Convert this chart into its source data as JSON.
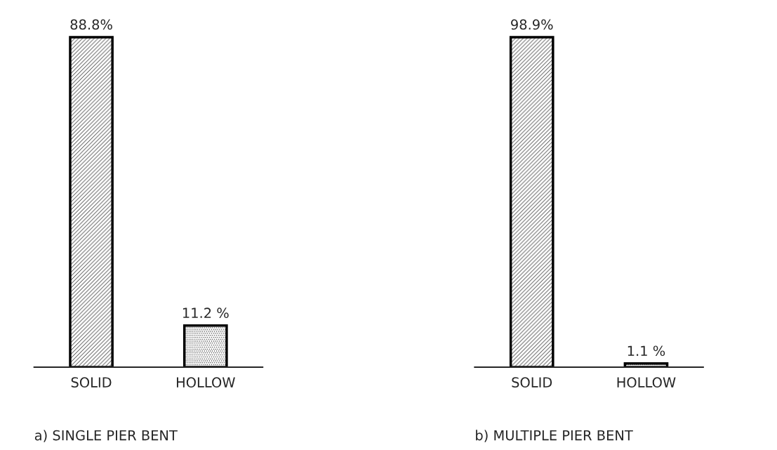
{
  "chart_data": [
    {
      "type": "bar",
      "title": "a) SINGLE PIER BENT",
      "categories": [
        "SOLID",
        "HOLLOW"
      ],
      "values": [
        88.8,
        11.2
      ],
      "colors": [
        "#000000",
        "#000000"
      ],
      "value_labels": [
        "88.8%",
        "11.2 %"
      ]
    },
    {
      "type": "bar",
      "title": "b) MULTIPLE PIER BENT",
      "categories": [
        "SOLID",
        "HOLLOW"
      ],
      "values": [
        98.9,
        1.1
      ],
      "colors": [
        "#000000",
        "#000000"
      ],
      "value_labels": [
        "98.9%",
        "1.1 %"
      ]
    }
  ]
}
